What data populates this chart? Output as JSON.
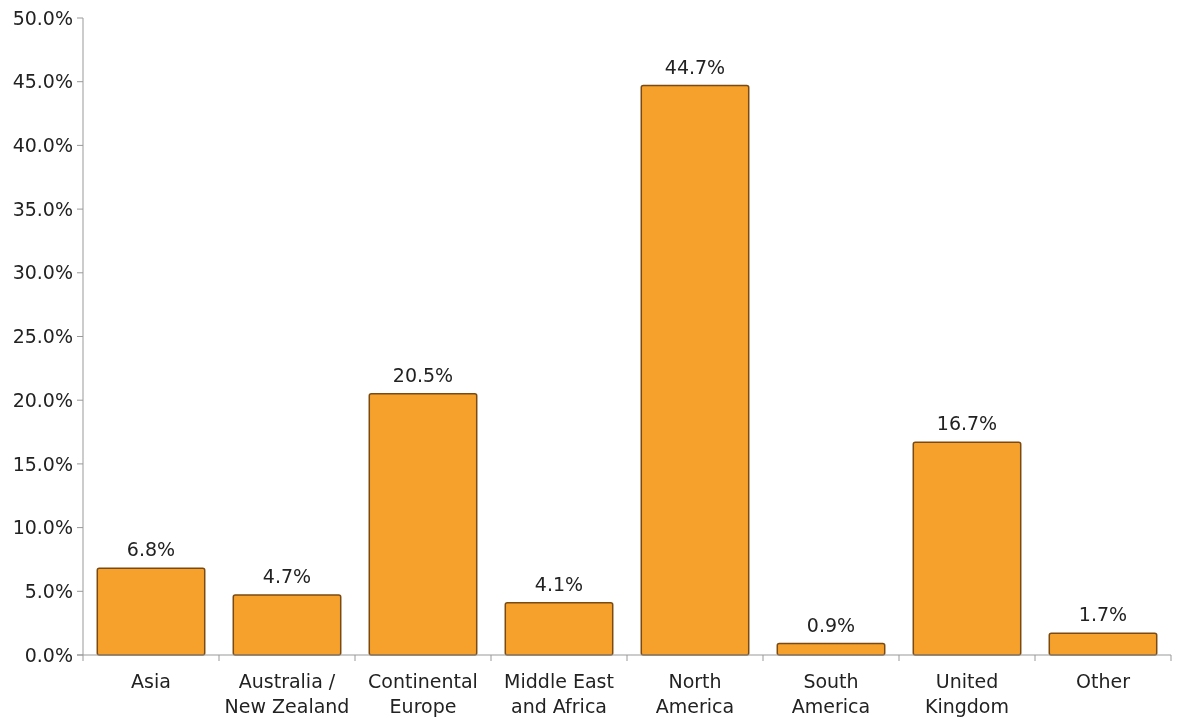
{
  "chart_data": {
    "type": "bar",
    "categories": [
      "Asia",
      "Australia /\nNew Zealand",
      "Continental\nEurope",
      "Middle East\nand Africa",
      "North\nAmerica",
      "South\nAmerica",
      "United\nKingdom",
      "Other"
    ],
    "values": [
      6.8,
      4.7,
      20.5,
      4.1,
      44.7,
      0.9,
      16.7,
      1.7
    ],
    "value_labels": [
      "6.8%",
      "4.7%",
      "20.5%",
      "4.1%",
      "44.7%",
      "0.9%",
      "16.7%",
      "1.7%"
    ],
    "color": "#f5a12b",
    "ylim": [
      0,
      50
    ],
    "yticks": [
      {
        "value": 0,
        "label": "0.0%"
      },
      {
        "value": 5,
        "label": "5.0%"
      },
      {
        "value": 10,
        "label": "10.0%"
      },
      {
        "value": 15,
        "label": "15.0%"
      },
      {
        "value": 20,
        "label": "20.0%"
      },
      {
        "value": 25,
        "label": "25.0%"
      },
      {
        "value": 30,
        "label": "30.0%"
      },
      {
        "value": 35,
        "label": "35.0%"
      },
      {
        "value": 40,
        "label": "40.0%"
      },
      {
        "value": 45,
        "label": "45.0%"
      },
      {
        "value": 50,
        "label": "50.0%"
      }
    ],
    "grid": false
  }
}
